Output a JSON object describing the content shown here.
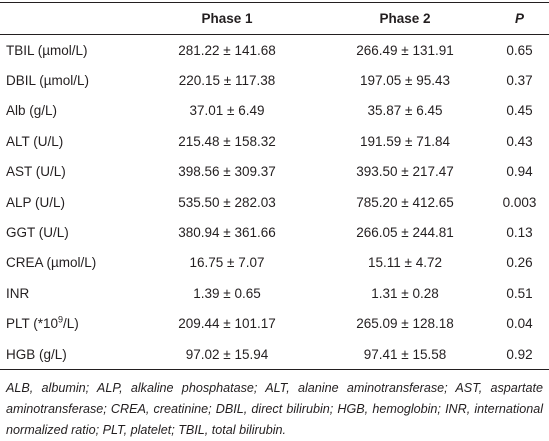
{
  "table": {
    "header": [
      "Phase 1",
      "Phase 2",
      "P"
    ],
    "rows": [
      [
        "TBIL (µmol/L)",
        "281.22 ± 141.68",
        "266.49 ± 131.91",
        "0.65"
      ],
      [
        "DBIL (µmol/L)",
        "220.15 ± 117.38",
        "197.05 ± 95.43",
        "0.37"
      ],
      [
        "Alb (g/L)",
        "37.01 ± 6.49",
        "35.87 ± 6.45",
        "0.45"
      ],
      [
        "ALT (U/L)",
        "215.48 ± 158.32",
        "191.59 ± 71.84",
        "0.43"
      ],
      [
        "AST (U/L)",
        "398.56 ± 309.37",
        "393.50 ± 217.47",
        "0.94"
      ],
      [
        "ALP (U/L)",
        "535.50 ± 282.03",
        "785.20 ± 412.65",
        "0.003"
      ],
      [
        "GGT (U/L)",
        "380.94 ± 361.66",
        "266.05 ± 244.81",
        "0.13"
      ],
      [
        "CREA (µmol/L)",
        "16.75 ± 7.07",
        "15.11 ± 4.72",
        "0.26"
      ],
      [
        "INR",
        "1.39 ± 0.65",
        "1.31 ± 0.28",
        "0.51"
      ],
      [
        [
          "PLT (*10",
          "9",
          "/L)"
        ],
        "209.44 ± 101.17",
        "265.09 ± 128.18",
        "0.04"
      ],
      [
        "HGB (g/L)",
        "97.02 ± 15.94",
        "97.41 ± 15.58",
        "0.92"
      ]
    ],
    "footnote": "ALB, albumin; ALP, alkaline phosphatase; ALT, alanine aminotransferase; AST, aspartate aminotransferase; CREA, creatinine; DBIL, direct bilirubin; HGB, hemoglobin; INR, international normalized ratio; PLT, platelet; TBIL, total bilirubin."
  }
}
